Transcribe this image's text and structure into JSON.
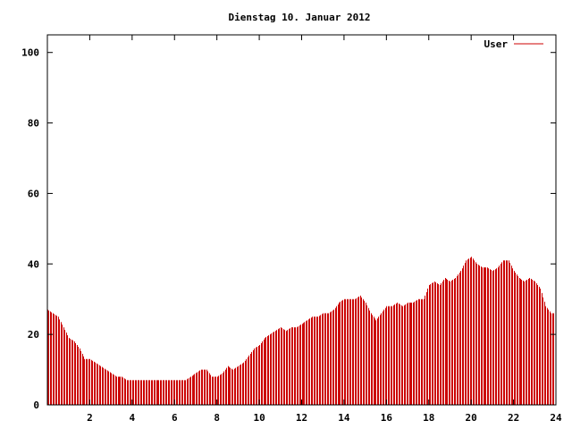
{
  "chart_data": {
    "type": "bar",
    "title": "Dienstag 10. Januar 2012",
    "xlabel": "",
    "ylabel": "",
    "xlim": [
      0,
      24
    ],
    "ylim": [
      0,
      105
    ],
    "xticks": [
      2,
      4,
      6,
      8,
      10,
      12,
      14,
      16,
      18,
      20,
      22,
      24
    ],
    "xtick_labels": [
      "2",
      "4",
      "6",
      "8",
      "10",
      "12",
      "14",
      "16",
      "18",
      "20",
      "22",
      "24"
    ],
    "yticks": [
      0,
      20,
      40,
      60,
      80,
      100
    ],
    "ytick_labels": [
      "0",
      "20",
      "40",
      "60",
      "80",
      "100"
    ],
    "grid": false,
    "legend_position": "top-right",
    "series": [
      {
        "name": "User",
        "color": "#cc0000",
        "points": [
          [
            0,
            27
          ],
          [
            0.25,
            26
          ],
          [
            0.5,
            25
          ],
          [
            0.75,
            22
          ],
          [
            1,
            19
          ],
          [
            1.25,
            18
          ],
          [
            1.5,
            16
          ],
          [
            1.75,
            13
          ],
          [
            2,
            13
          ],
          [
            2.25,
            12
          ],
          [
            2.5,
            11
          ],
          [
            2.75,
            10
          ],
          [
            3,
            9
          ],
          [
            3.25,
            8
          ],
          [
            3.5,
            8
          ],
          [
            3.75,
            7
          ],
          [
            4,
            7
          ],
          [
            4.25,
            7
          ],
          [
            4.5,
            7
          ],
          [
            4.75,
            7
          ],
          [
            5,
            7
          ],
          [
            5.25,
            7
          ],
          [
            5.5,
            7
          ],
          [
            5.75,
            7
          ],
          [
            6,
            7
          ],
          [
            6.25,
            7
          ],
          [
            6.5,
            7
          ],
          [
            6.75,
            8
          ],
          [
            7,
            9
          ],
          [
            7.25,
            10
          ],
          [
            7.5,
            10
          ],
          [
            7.75,
            8
          ],
          [
            8,
            8
          ],
          [
            8.25,
            9
          ],
          [
            8.5,
            11
          ],
          [
            8.75,
            10
          ],
          [
            9,
            11
          ],
          [
            9.25,
            12
          ],
          [
            9.5,
            14
          ],
          [
            9.75,
            16
          ],
          [
            10,
            17
          ],
          [
            10.25,
            19
          ],
          [
            10.5,
            20
          ],
          [
            10.75,
            21
          ],
          [
            11,
            22
          ],
          [
            11.25,
            21
          ],
          [
            11.5,
            22
          ],
          [
            11.75,
            22
          ],
          [
            12,
            23
          ],
          [
            12.25,
            24
          ],
          [
            12.5,
            25
          ],
          [
            12.75,
            25
          ],
          [
            13,
            26
          ],
          [
            13.25,
            26
          ],
          [
            13.5,
            27
          ],
          [
            13.75,
            29
          ],
          [
            14,
            30
          ],
          [
            14.25,
            30
          ],
          [
            14.5,
            30
          ],
          [
            14.75,
            31
          ],
          [
            15,
            29
          ],
          [
            15.25,
            26
          ],
          [
            15.5,
            24
          ],
          [
            15.75,
            26
          ],
          [
            16,
            28
          ],
          [
            16.25,
            28
          ],
          [
            16.5,
            29
          ],
          [
            16.75,
            28
          ],
          [
            17,
            29
          ],
          [
            17.25,
            29
          ],
          [
            17.5,
            30
          ],
          [
            17.75,
            30
          ],
          [
            18,
            34
          ],
          [
            18.25,
            35
          ],
          [
            18.5,
            34
          ],
          [
            18.75,
            36
          ],
          [
            19,
            35
          ],
          [
            19.25,
            36
          ],
          [
            19.5,
            38
          ],
          [
            19.75,
            41
          ],
          [
            20,
            42
          ],
          [
            20.25,
            40
          ],
          [
            20.5,
            39
          ],
          [
            20.75,
            39
          ],
          [
            21,
            38
          ],
          [
            21.25,
            39
          ],
          [
            21.5,
            41
          ],
          [
            21.75,
            41
          ],
          [
            22,
            38
          ],
          [
            22.25,
            36
          ],
          [
            22.5,
            35
          ],
          [
            22.75,
            36
          ],
          [
            23,
            35
          ],
          [
            23.25,
            33
          ],
          [
            23.5,
            28
          ],
          [
            23.75,
            26
          ]
        ]
      }
    ]
  }
}
